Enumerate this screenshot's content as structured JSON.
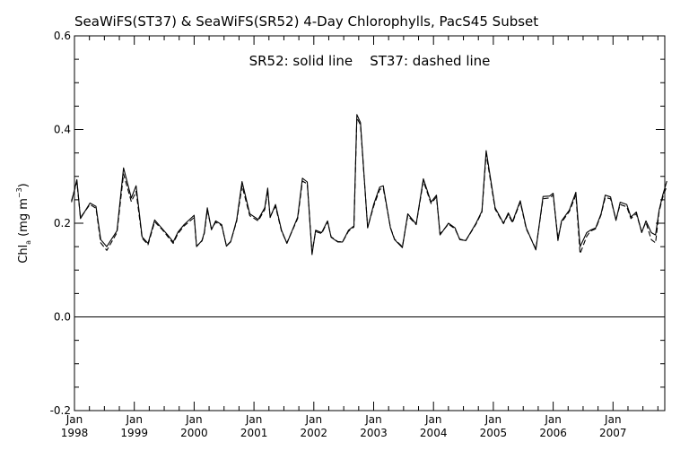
{
  "chart_data": {
    "type": "line",
    "title": "SeaWiFS(ST37) & SeaWiFS(SR52) 4-Day Chlorophylls, PacS45 Subset",
    "annotation": "SR52: solid line    ST37: dashed line",
    "ylabel": {
      "main": "Chl",
      "sub": "a",
      "units": "(mg m",
      "sup": "−3",
      "close": ")"
    },
    "xlim": [
      1997.95,
      2007.92
    ],
    "ylim": [
      -0.2,
      0.6
    ],
    "yticks": [
      "-0.2",
      "0.0",
      "0.2",
      "0.4",
      "0.6"
    ],
    "xticks": [
      {
        "month": "Jan",
        "year": "1998",
        "x": 1998.0
      },
      {
        "month": "Jan",
        "year": "1999",
        "x": 1999.0
      },
      {
        "month": "Jan",
        "year": "2000",
        "x": 2000.0
      },
      {
        "month": "Jan",
        "year": "2001",
        "x": 2001.0
      },
      {
        "month": "Jan",
        "year": "2002",
        "x": 2002.0
      },
      {
        "month": "Jan",
        "year": "2003",
        "x": 2003.0
      },
      {
        "month": "Jan",
        "year": "2004",
        "x": 2004.0
      },
      {
        "month": "Jan",
        "year": "2005",
        "x": 2005.0
      },
      {
        "month": "Jan",
        "year": "2006",
        "x": 2006.0
      },
      {
        "month": "Jan",
        "year": "2007",
        "x": 2007.0
      }
    ],
    "zero_line": 0.0,
    "series": [
      {
        "name": "SR52",
        "style": "solid",
        "x": [
          1997.95,
          1998.04,
          1998.1,
          1998.26,
          1998.36,
          1998.44,
          1998.54,
          1998.71,
          1998.82,
          1998.95,
          1999.03,
          1999.13,
          1999.23,
          1999.34,
          1999.47,
          1999.55,
          1999.65,
          1999.73,
          1999.83,
          2000.0,
          2000.04,
          2000.13,
          2000.17,
          2000.22,
          2000.29,
          2000.36,
          2000.46,
          2000.54,
          2000.61,
          2000.71,
          2000.8,
          2000.93,
          2001.07,
          2001.18,
          2001.23,
          2001.27,
          2001.36,
          2001.46,
          2001.55,
          2001.73,
          2001.81,
          2001.89,
          2001.97,
          2002.03,
          2002.13,
          2002.23,
          2002.29,
          2002.4,
          2002.48,
          2002.58,
          2002.67,
          2002.72,
          2002.78,
          2002.9,
          2003.0,
          2003.1,
          2003.16,
          2003.28,
          2003.35,
          2003.48,
          2003.57,
          2003.71,
          2003.83,
          2003.96,
          2004.05,
          2004.11,
          2004.25,
          2004.36,
          2004.44,
          2004.54,
          2004.71,
          2004.81,
          2004.88,
          2005.03,
          2005.17,
          2005.25,
          2005.32,
          2005.45,
          2005.55,
          2005.71,
          2005.83,
          2005.94,
          2006.0,
          2006.08,
          2006.14,
          2006.27,
          2006.38,
          2006.45,
          2006.56,
          2006.62,
          2006.71,
          2006.8,
          2006.87,
          2006.96,
          2007.05,
          2007.12,
          2007.23,
          2007.3,
          2007.39,
          2007.48,
          2007.55,
          2007.64,
          2007.71,
          2007.77,
          2007.83,
          2007.9
        ],
        "y": [
          0.245,
          0.293,
          0.21,
          0.243,
          0.236,
          0.165,
          0.15,
          0.184,
          0.318,
          0.254,
          0.28,
          0.171,
          0.157,
          0.207,
          0.188,
          0.176,
          0.16,
          0.181,
          0.197,
          0.217,
          0.15,
          0.163,
          0.18,
          0.233,
          0.186,
          0.205,
          0.197,
          0.151,
          0.16,
          0.207,
          0.289,
          0.22,
          0.208,
          0.233,
          0.275,
          0.212,
          0.24,
          0.185,
          0.157,
          0.213,
          0.296,
          0.288,
          0.133,
          0.185,
          0.18,
          0.205,
          0.17,
          0.16,
          0.16,
          0.185,
          0.194,
          0.432,
          0.415,
          0.19,
          0.24,
          0.277,
          0.28,
          0.19,
          0.165,
          0.148,
          0.22,
          0.198,
          0.295,
          0.245,
          0.26,
          0.175,
          0.2,
          0.19,
          0.165,
          0.163,
          0.2,
          0.226,
          0.355,
          0.233,
          0.2,
          0.222,
          0.203,
          0.248,
          0.19,
          0.143,
          0.257,
          0.258,
          0.264,
          0.163,
          0.205,
          0.228,
          0.266,
          0.15,
          0.18,
          0.185,
          0.19,
          0.22,
          0.26,
          0.256,
          0.206,
          0.245,
          0.24,
          0.213,
          0.224,
          0.18,
          0.205,
          0.18,
          0.175,
          0.228,
          0.26,
          0.29
        ]
      },
      {
        "name": "ST37",
        "style": "dashed",
        "x": [
          1997.95,
          1998.04,
          1998.1,
          1998.26,
          1998.36,
          1998.44,
          1998.54,
          1998.71,
          1998.82,
          1998.95,
          1999.03,
          1999.13,
          1999.23,
          1999.34,
          1999.47,
          1999.55,
          1999.65,
          1999.73,
          1999.83,
          2000.0,
          2000.04,
          2000.13,
          2000.17,
          2000.22,
          2000.29,
          2000.36,
          2000.46,
          2000.54,
          2000.61,
          2000.71,
          2000.8,
          2000.93,
          2001.07,
          2001.18,
          2001.23,
          2001.27,
          2001.36,
          2001.46,
          2001.55,
          2001.73,
          2001.81,
          2001.89,
          2001.97,
          2002.03,
          2002.13,
          2002.23,
          2002.29,
          2002.4,
          2002.48,
          2002.58,
          2002.67,
          2002.72,
          2002.78,
          2002.9,
          2003.0,
          2003.1,
          2003.16,
          2003.28,
          2003.35,
          2003.48,
          2003.57,
          2003.71,
          2003.83,
          2003.96,
          2004.05,
          2004.11,
          2004.25,
          2004.36,
          2004.44,
          2004.54,
          2004.71,
          2004.81,
          2004.88,
          2005.03,
          2005.17,
          2005.25,
          2005.32,
          2005.45,
          2005.55,
          2005.71,
          2005.83,
          2005.94,
          2006.0,
          2006.08,
          2006.14,
          2006.27,
          2006.38,
          2006.45,
          2006.56,
          2006.62,
          2006.71,
          2006.8,
          2006.87,
          2006.96,
          2007.05,
          2007.12,
          2007.23,
          2007.3,
          2007.39,
          2007.48,
          2007.55,
          2007.64,
          2007.71,
          2007.77,
          2007.83,
          2007.9
        ],
        "y": [
          0.248,
          0.288,
          0.212,
          0.24,
          0.232,
          0.158,
          0.142,
          0.18,
          0.305,
          0.246,
          0.268,
          0.168,
          0.154,
          0.203,
          0.186,
          0.173,
          0.157,
          0.178,
          0.194,
          0.212,
          0.151,
          0.162,
          0.178,
          0.228,
          0.188,
          0.202,
          0.195,
          0.152,
          0.161,
          0.204,
          0.28,
          0.216,
          0.205,
          0.229,
          0.27,
          0.214,
          0.236,
          0.183,
          0.158,
          0.21,
          0.29,
          0.284,
          0.138,
          0.182,
          0.178,
          0.203,
          0.171,
          0.161,
          0.16,
          0.183,
          0.192,
          0.425,
          0.41,
          0.191,
          0.236,
          0.272,
          0.275,
          0.191,
          0.166,
          0.15,
          0.216,
          0.197,
          0.29,
          0.242,
          0.256,
          0.177,
          0.198,
          0.188,
          0.166,
          0.163,
          0.198,
          0.224,
          0.348,
          0.23,
          0.199,
          0.219,
          0.201,
          0.245,
          0.188,
          0.145,
          0.252,
          0.254,
          0.26,
          0.168,
          0.202,
          0.225,
          0.26,
          0.135,
          0.172,
          0.183,
          0.188,
          0.218,
          0.255,
          0.252,
          0.208,
          0.24,
          0.235,
          0.21,
          0.22,
          0.182,
          0.202,
          0.165,
          0.158,
          0.225,
          0.255,
          0.28
        ]
      }
    ]
  }
}
